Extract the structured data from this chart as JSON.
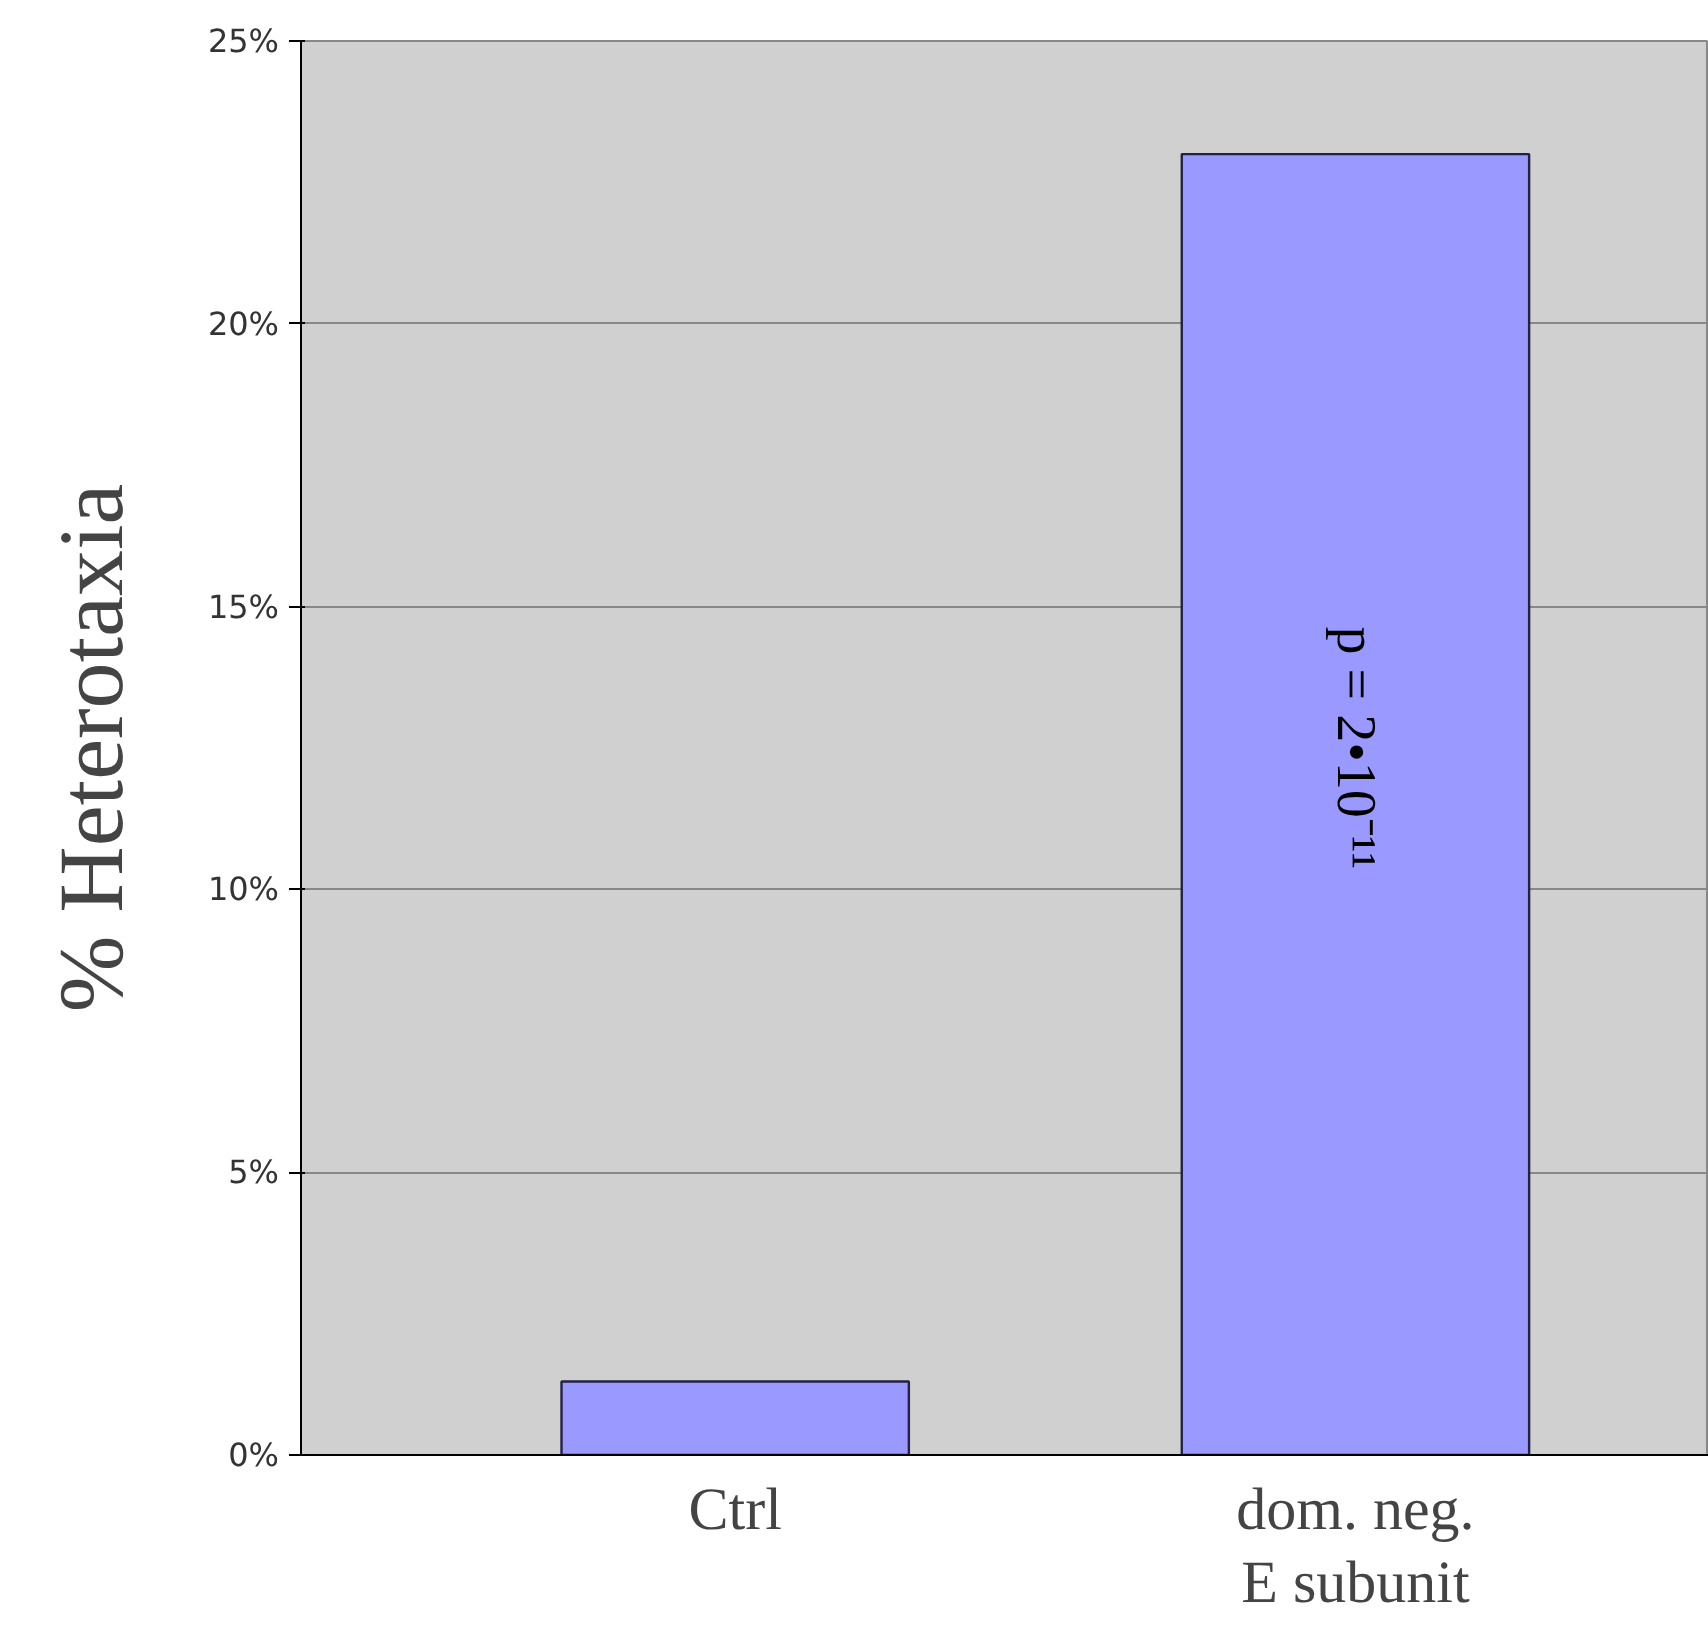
{
  "chart_data": {
    "type": "bar",
    "ylabel": "% Heterotaxia",
    "categories": [
      "Ctrl",
      "dom. neg.\nE subunit"
    ],
    "values": [
      1.3,
      23
    ],
    "color": "#9999ff",
    "ylim": [
      0,
      25
    ],
    "yticks": [
      {
        "value": 0,
        "label": "0%"
      },
      {
        "value": 5,
        "label": "5%"
      },
      {
        "value": 10,
        "label": "10%"
      },
      {
        "value": 15,
        "label": "15%"
      },
      {
        "value": 20,
        "label": "20%"
      },
      {
        "value": 25,
        "label": "25%"
      }
    ],
    "grid": "y",
    "annotations": [
      "p = 2•10⁻¹¹"
    ]
  }
}
